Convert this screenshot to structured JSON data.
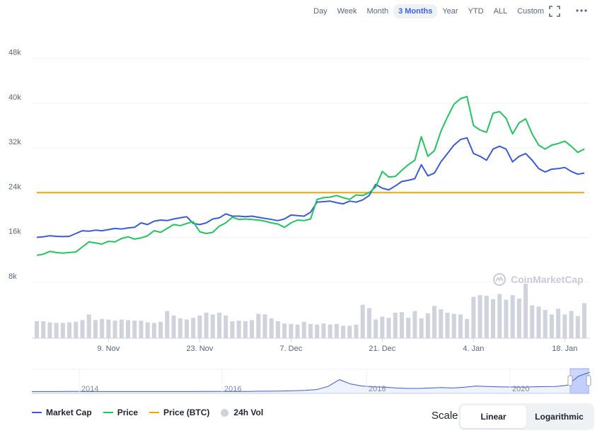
{
  "toolbar": {
    "ranges": [
      "Day",
      "Week",
      "Month",
      "3 Months",
      "Year",
      "YTD",
      "ALL",
      "Custom"
    ],
    "active_range": "3 Months"
  },
  "watermark": "CoinMarketCap",
  "legend": {
    "market_cap": "Market Cap",
    "price": "Price",
    "price_btc": "Price (BTC)",
    "vol": "24h Vol"
  },
  "scale": {
    "label": "Scale:",
    "linear": "Linear",
    "logarithmic": "Logarithmic",
    "active": "Linear"
  },
  "colors": {
    "market_cap": "#3b5bdb",
    "price": "#22c55e",
    "price_btc": "#f7a600",
    "volume": "#cfd3dc"
  },
  "chart_data": {
    "type": "line",
    "y_ticks": [
      "8k",
      "16k",
      "24k",
      "32k",
      "40k",
      "48k"
    ],
    "ylim": [
      0,
      52000
    ],
    "x_tick_labels": [
      "9. Nov",
      "23. Nov",
      "7. Dec",
      "21. Dec",
      "4. Jan",
      "18. Jan"
    ],
    "x_tick_index": [
      11,
      25,
      39,
      53,
      67,
      81
    ],
    "grid": true,
    "legend_position": "bottom-left",
    "series": [
      {
        "name": "Market Cap",
        "values": [
          16000,
          16100,
          16300,
          16200,
          16150,
          16200,
          16700,
          17200,
          17100,
          17300,
          17200,
          17400,
          17600,
          17500,
          17700,
          17800,
          18600,
          18300,
          18900,
          19100,
          19000,
          19300,
          19500,
          19700,
          18500,
          18300,
          18600,
          19300,
          19500,
          20200,
          19800,
          19800,
          19700,
          19800,
          19600,
          19400,
          19200,
          19000,
          19300,
          20000,
          19900,
          19800,
          20500,
          22300,
          22400,
          22500,
          22200,
          22000,
          22500,
          22300,
          22700,
          23500,
          25500,
          24800,
          24500,
          25200,
          26000,
          26200,
          26500,
          29000,
          27000,
          27500,
          29500,
          31000,
          32500,
          33500,
          33800,
          31000,
          30500,
          29800,
          31800,
          32300,
          31800,
          29500,
          30500,
          31000,
          29800,
          28300,
          27700,
          28200,
          28300,
          28500,
          27800,
          27300,
          27500
        ]
      },
      {
        "name": "Price",
        "values": [
          12800,
          13000,
          13500,
          13300,
          13200,
          13300,
          13400,
          14300,
          15200,
          15000,
          14800,
          15300,
          15200,
          15800,
          16100,
          15700,
          15900,
          16300,
          17200,
          16900,
          17600,
          18300,
          18100,
          18500,
          18800,
          17000,
          16700,
          16900,
          18000,
          18600,
          19600,
          19200,
          19300,
          19200,
          19100,
          18900,
          18600,
          18400,
          17800,
          18600,
          19100,
          19000,
          19300,
          22800,
          23100,
          23200,
          23500,
          23100,
          22800,
          23600,
          23500,
          24000,
          25000,
          27800,
          26800,
          26900,
          28000,
          29000,
          29800,
          34000,
          30500,
          31500,
          35000,
          37500,
          39800,
          40800,
          41200,
          36000,
          35200,
          34800,
          38200,
          38500,
          37300,
          34500,
          36500,
          37200,
          34500,
          32500,
          31800,
          32500,
          32800,
          33200,
          32300,
          31200,
          31800
        ]
      },
      {
        "name": "Price (BTC)",
        "values": [
          24000,
          24000,
          24000,
          24000,
          24000,
          24000,
          24000,
          24000,
          24000,
          24000,
          24000,
          24000,
          24000,
          24000,
          24000,
          24000,
          24000,
          24000,
          24000,
          24000,
          24000,
          24000,
          24000,
          24000,
          24000,
          24000,
          24000,
          24000,
          24000,
          24000,
          24000,
          24000,
          24000,
          24000,
          24000,
          24000,
          24000,
          24000,
          24000,
          24000,
          24000,
          24000,
          24000,
          24000,
          24000,
          24000,
          24000,
          24000,
          24000,
          24000,
          24000,
          24000,
          24000,
          24000,
          24000,
          24000,
          24000,
          24000,
          24000,
          24000,
          24000,
          24000,
          24000,
          24000,
          24000,
          24000,
          24000,
          24000,
          24000,
          24000,
          24000,
          24000,
          24000,
          24000,
          24000,
          24000,
          24000,
          24000,
          24000,
          24000,
          24000,
          24000,
          24000,
          24000,
          24000
        ]
      },
      {
        "name": "24h Vol",
        "values": [
          0.3,
          0.3,
          0.28,
          0.27,
          0.27,
          0.28,
          0.29,
          0.32,
          0.42,
          0.32,
          0.34,
          0.33,
          0.31,
          0.33,
          0.32,
          0.31,
          0.31,
          0.28,
          0.27,
          0.29,
          0.48,
          0.4,
          0.35,
          0.33,
          0.36,
          0.4,
          0.45,
          0.42,
          0.45,
          0.4,
          0.3,
          0.31,
          0.3,
          0.32,
          0.43,
          0.42,
          0.35,
          0.3,
          0.26,
          0.25,
          0.24,
          0.29,
          0.25,
          0.24,
          0.26,
          0.24,
          0.25,
          0.22,
          0.22,
          0.24,
          0.59,
          0.53,
          0.33,
          0.38,
          0.36,
          0.45,
          0.46,
          0.36,
          0.48,
          0.35,
          0.44,
          0.57,
          0.51,
          0.45,
          0.43,
          0.42,
          0.34,
          0.73,
          0.76,
          0.75,
          0.69,
          0.78,
          0.68,
          0.76,
          0.7,
          0.96,
          0.58,
          0.56,
          0.5,
          0.42,
          0.52,
          0.42,
          0.48,
          0.39,
          0.62
        ]
      }
    ],
    "navigator": {
      "x_tick_labels": [
        "2014",
        "2016",
        "2018",
        "2020"
      ],
      "values": [
        0.02,
        0.02,
        0.02,
        0.03,
        0.03,
        0.02,
        0.02,
        0.02,
        0.02,
        0.02,
        0.02,
        0.02,
        0.02,
        0.02,
        0.02,
        0.03,
        0.03,
        0.03,
        0.03,
        0.03,
        0.04,
        0.04,
        0.05,
        0.06,
        0.08,
        0.12,
        0.28,
        0.62,
        0.4,
        0.3,
        0.26,
        0.24,
        0.2,
        0.18,
        0.18,
        0.2,
        0.22,
        0.2,
        0.24,
        0.3,
        0.28,
        0.26,
        0.25,
        0.24,
        0.26,
        0.27,
        0.28,
        0.34,
        0.8,
        1.0
      ]
    }
  }
}
